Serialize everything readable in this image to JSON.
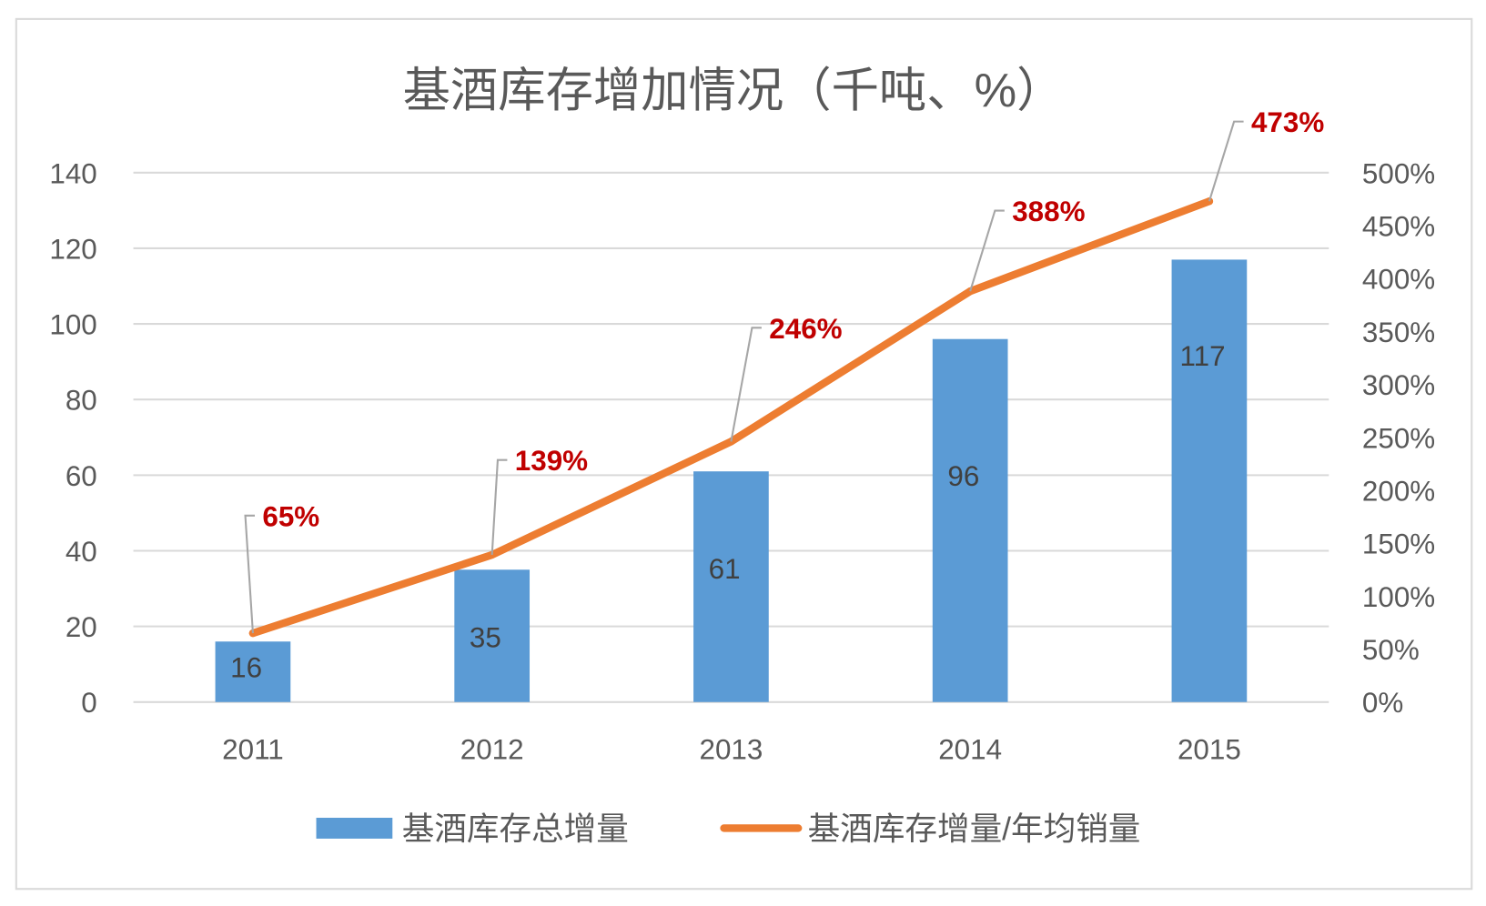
{
  "chart_data": {
    "type": "bar+line",
    "title": "基酒库存增加情况（千吨、%）",
    "categories": [
      "2011",
      "2012",
      "2013",
      "2014",
      "2015"
    ],
    "series": [
      {
        "name": "基酒库存总增量",
        "type": "bar",
        "axis": "left",
        "values": [
          16,
          35,
          61,
          96,
          117
        ],
        "labels": [
          "16",
          "35",
          "61",
          "96",
          "117"
        ],
        "color": "#5B9BD5"
      },
      {
        "name": "基酒库存增量/年均销量",
        "type": "line",
        "axis": "right",
        "values": [
          65,
          139,
          246,
          388,
          473
        ],
        "labels": [
          "65%",
          "139%",
          "246%",
          "388%",
          "473%"
        ],
        "color": "#ED7D31",
        "label_color": "#C00000"
      }
    ],
    "y_left": {
      "range": [
        0,
        140
      ],
      "ticks": [
        "0",
        "20",
        "40",
        "60",
        "80",
        "100",
        "120",
        "140"
      ]
    },
    "y_right": {
      "range": [
        0,
        500
      ],
      "ticks": [
        "0%",
        "50%",
        "100%",
        "150%",
        "200%",
        "250%",
        "300%",
        "350%",
        "400%",
        "450%",
        "500%"
      ]
    },
    "grid": true,
    "legend": "bottom"
  }
}
